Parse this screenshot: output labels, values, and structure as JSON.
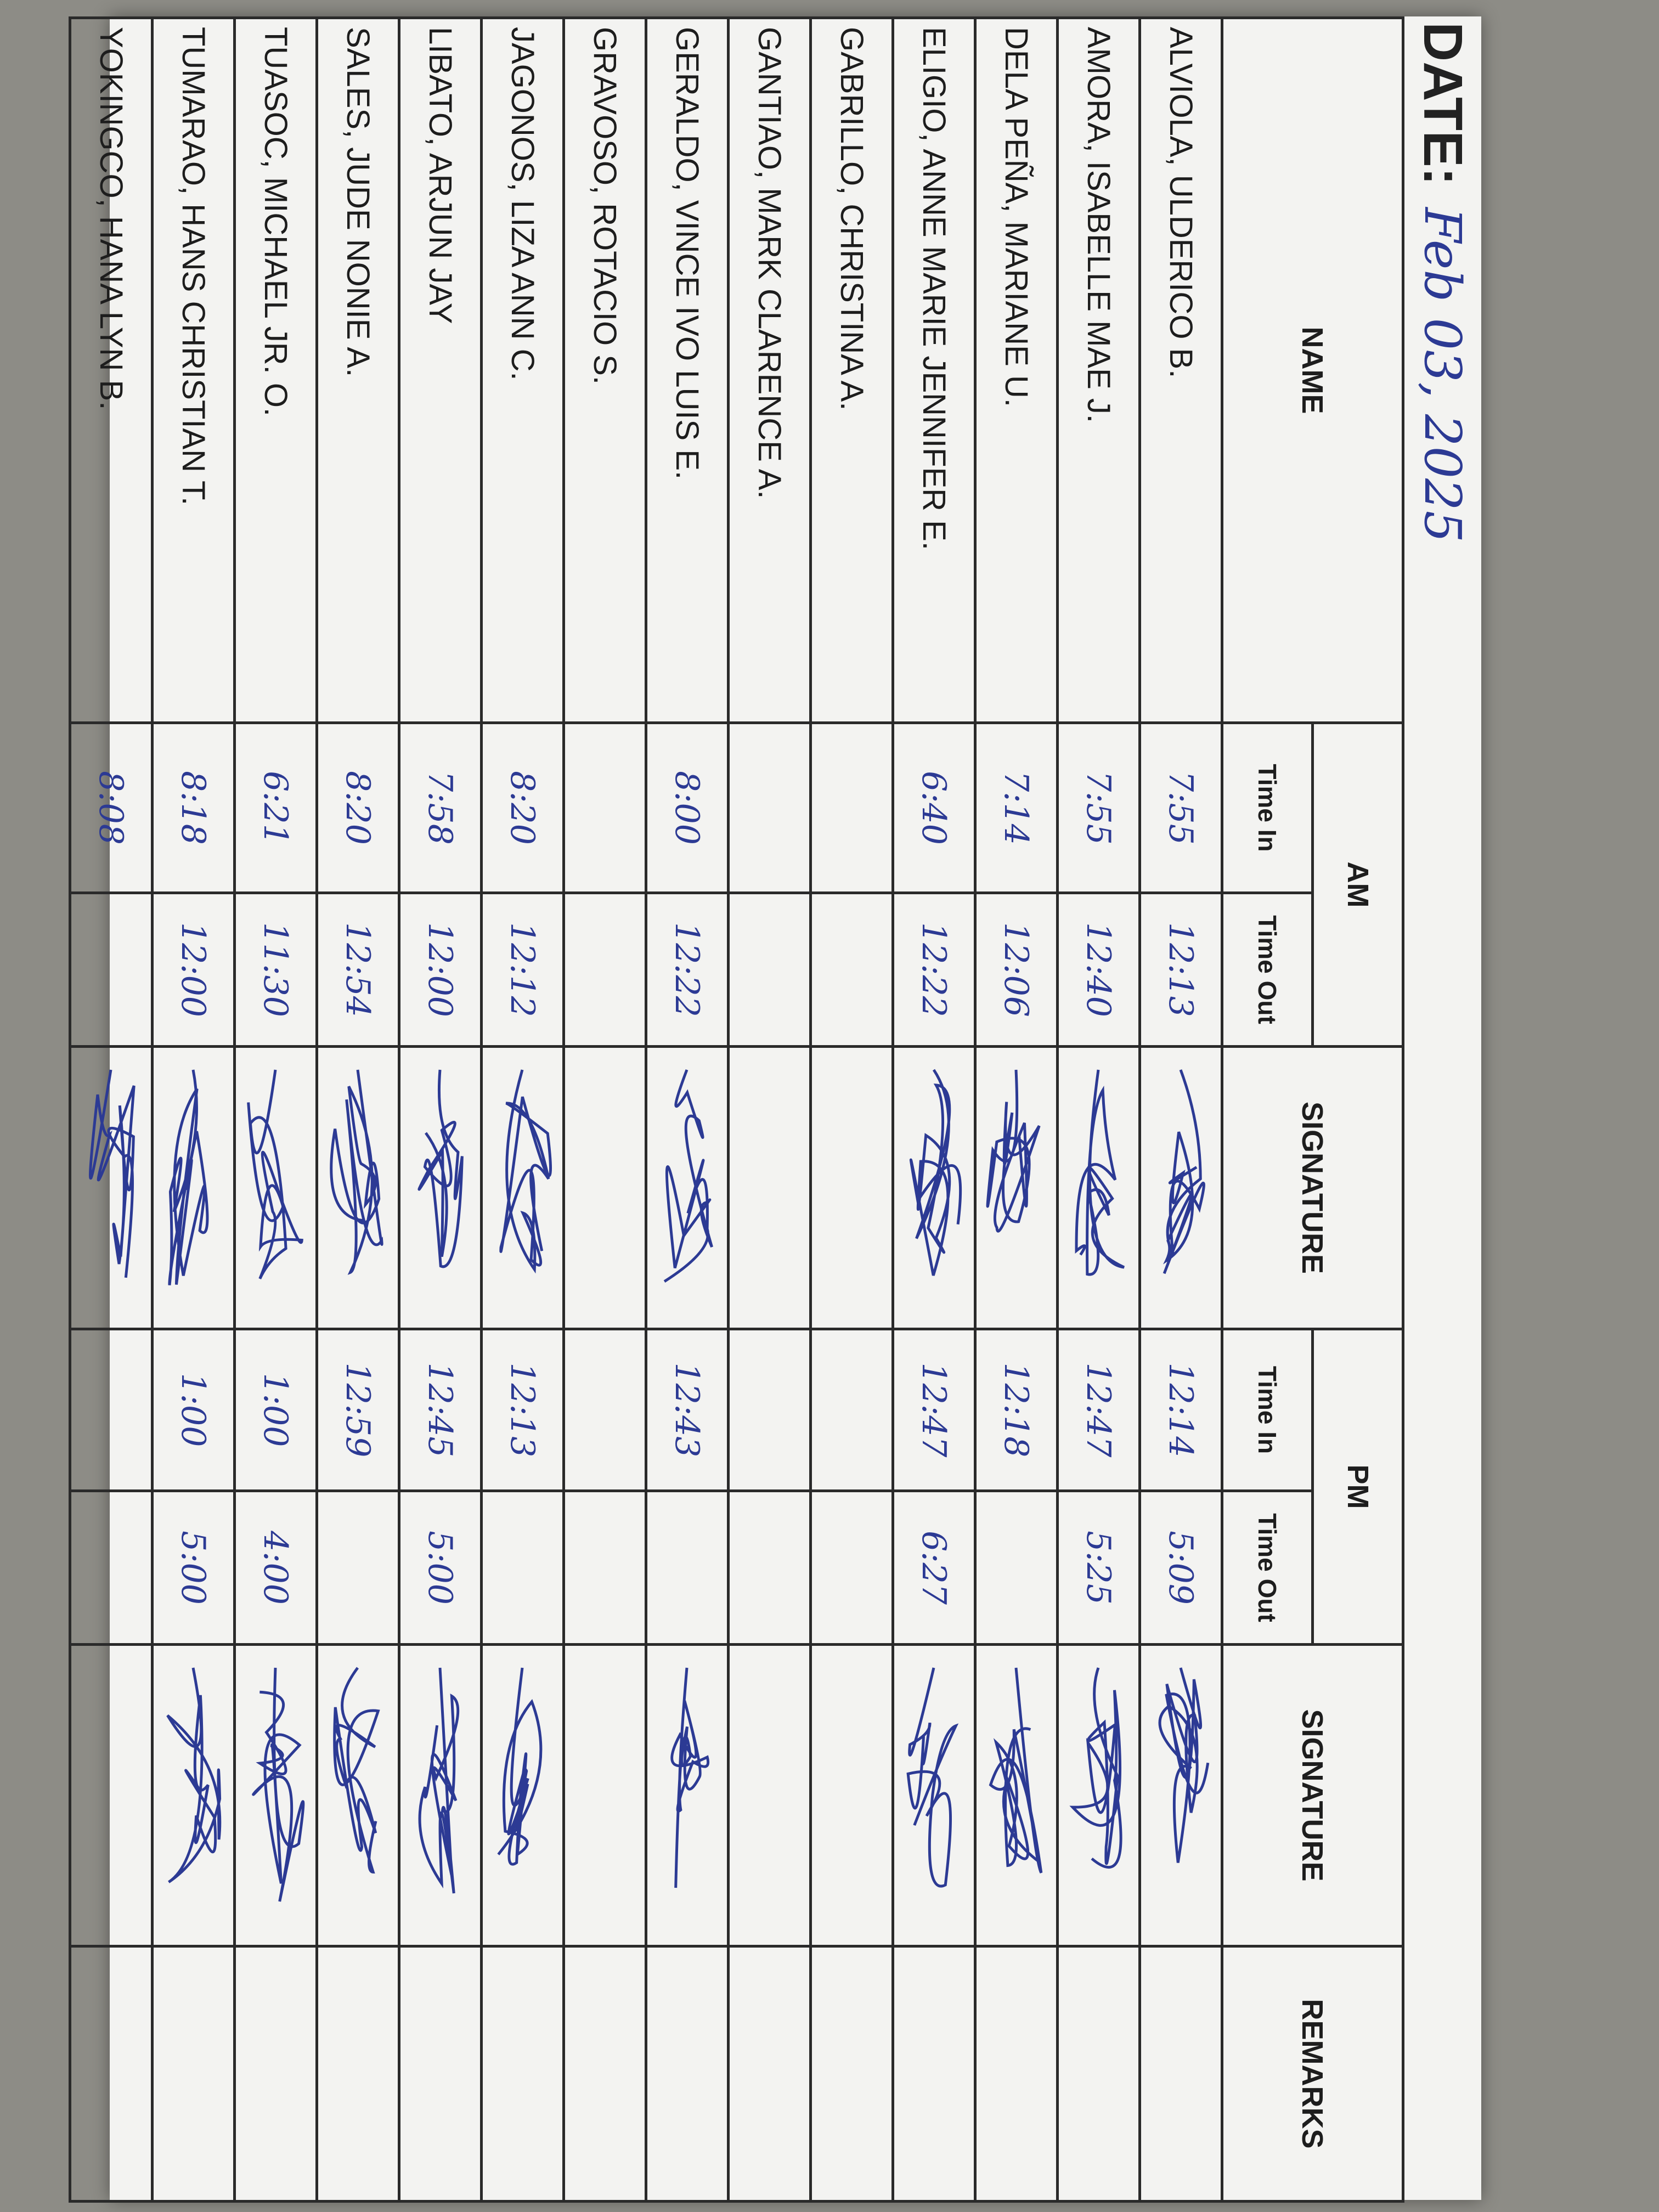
{
  "header": {
    "date_label": "DATE:",
    "date": "Feb 03, 2025"
  },
  "table": {
    "columns": {
      "name": "NAME",
      "am": "AM",
      "pm": "PM",
      "time_in": "Time In",
      "time_out": "Time Out",
      "signature": "SIGNATURE",
      "remarks": "REMARKS"
    },
    "rows": [
      {
        "name": "ALVIOLA, ULDERICO B.",
        "am_in": "7:55",
        "am_out": "12:13",
        "pm_in": "12:14",
        "pm_out": "5:09"
      },
      {
        "name": "AMORA, ISABELLE MAE J.",
        "am_in": "7:55",
        "am_out": "12:40",
        "pm_in": "12:47",
        "pm_out": "5:25"
      },
      {
        "name": "DELA PEÑA, MARIANE U.",
        "am_in": "7:14",
        "am_out": "12:06",
        "pm_in": "12:18"
      },
      {
        "name": "ELIGIO, ANNE MARIE JENNIFER E.",
        "am_in": "6:40",
        "am_out": "12:22",
        "pm_in": "12:47",
        "pm_out": "6:27"
      },
      {
        "name": "GABRILLO, CHRISTINA A."
      },
      {
        "name": "GANTIAO, MARK CLARENCE A."
      },
      {
        "name": "GERALDO, VINCE IVO LUIS E.",
        "am_in": "8:00",
        "am_out": "12:22",
        "pm_in": "12:43"
      },
      {
        "name": "GRAVOSO, ROTACIO S."
      },
      {
        "name": "JAGONOS, LIZA ANN C.",
        "am_in": "8:20",
        "am_out": "12:12",
        "pm_in": "12:13"
      },
      {
        "name": "LIBATO, ARJUN JAY",
        "am_in": "7:58",
        "am_out": "12:00",
        "pm_in": "12:45",
        "pm_out": "5:00"
      },
      {
        "name": "SALES, JUDE NONIE A.",
        "am_in": "8:20",
        "am_out": "12:54",
        "pm_in": "12:59"
      },
      {
        "name": "TUASOC, MICHAEL JR. O.",
        "am_in": "6:21",
        "am_out": "11:30",
        "pm_in": "1:00",
        "pm_out": "4:00"
      },
      {
        "name": "TUMARAO, HANS CHRISTIAN T.",
        "am_in": "8:18",
        "am_out": "12:00",
        "pm_in": "1:00",
        "pm_out": "5:00"
      },
      {
        "name": "YOKINGCO, HANA LYN B.",
        "am_in": "8:08"
      }
    ]
  }
}
